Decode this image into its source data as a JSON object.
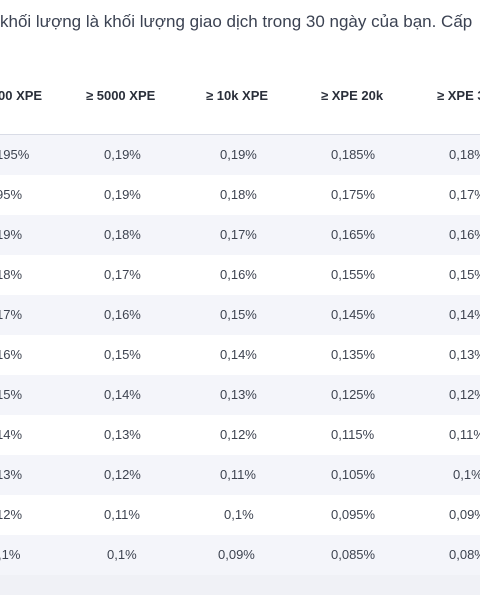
{
  "intro_text": "khối lượng là khối lượng giao dịch trong 30 ngày của bạn. Cấp",
  "columns": [
    "00 XPE",
    "≥ 5000 XPE",
    "≥ 10k XPE",
    "≥ XPE 20k",
    "≥ XPE 3"
  ],
  "rows": [
    [
      "195%",
      "0,19%",
      "0,19%",
      "0,185%",
      "0,18%"
    ],
    [
      "95%",
      "0,19%",
      "0,18%",
      "0,175%",
      "0,17%"
    ],
    [
      "19%",
      "0,18%",
      "0,17%",
      "0,165%",
      "0,16%"
    ],
    [
      "18%",
      "0,17%",
      "0,16%",
      "0,155%",
      "0,15%"
    ],
    [
      "17%",
      "0,16%",
      "0,15%",
      "0,145%",
      "0,14%"
    ],
    [
      "16%",
      "0,15%",
      "0,14%",
      "0,135%",
      "0,13%"
    ],
    [
      "15%",
      "0,14%",
      "0,13%",
      "0,125%",
      "0,12%"
    ],
    [
      "14%",
      "0,13%",
      "0,12%",
      "0,115%",
      "0,11%"
    ],
    [
      "13%",
      "0,12%",
      "0,11%",
      "0,105%",
      "0,1%"
    ],
    [
      "12%",
      "0,11%",
      "0,1%",
      "0,095%",
      "0,09%"
    ],
    [
      ",1%",
      "0,1%",
      "0,09%",
      "0,085%",
      "0,08%"
    ]
  ]
}
